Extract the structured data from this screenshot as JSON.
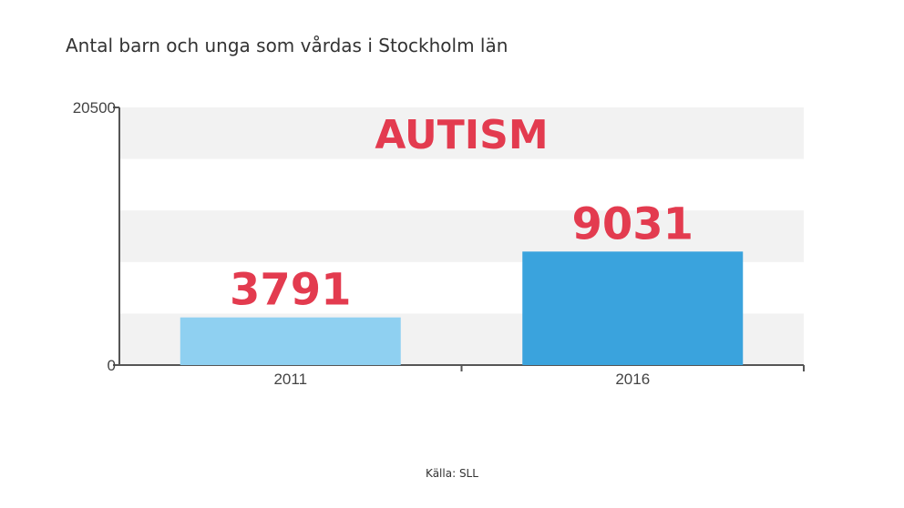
{
  "title": "Antal barn och unga som vårdas i Stockholm län",
  "source": "Källa: SLL",
  "colors": {
    "bar_2011": "#8fd0f1",
    "bar_2016": "#3aa3dd",
    "label": "#e33b4f",
    "band": "#f2f2f2",
    "axis": "#555555"
  },
  "chart_data": {
    "type": "bar",
    "categories": [
      "2011",
      "2016"
    ],
    "values": [
      3791,
      9031
    ],
    "data_labels": [
      "3791",
      "9031"
    ],
    "annotation": "AUTISM",
    "ylim": [
      0,
      20500
    ],
    "y_tick_labels": [
      "0",
      "20500"
    ],
    "xlabel": "",
    "ylabel": "",
    "grid": "alternating horizontal bands",
    "legend": "none"
  }
}
